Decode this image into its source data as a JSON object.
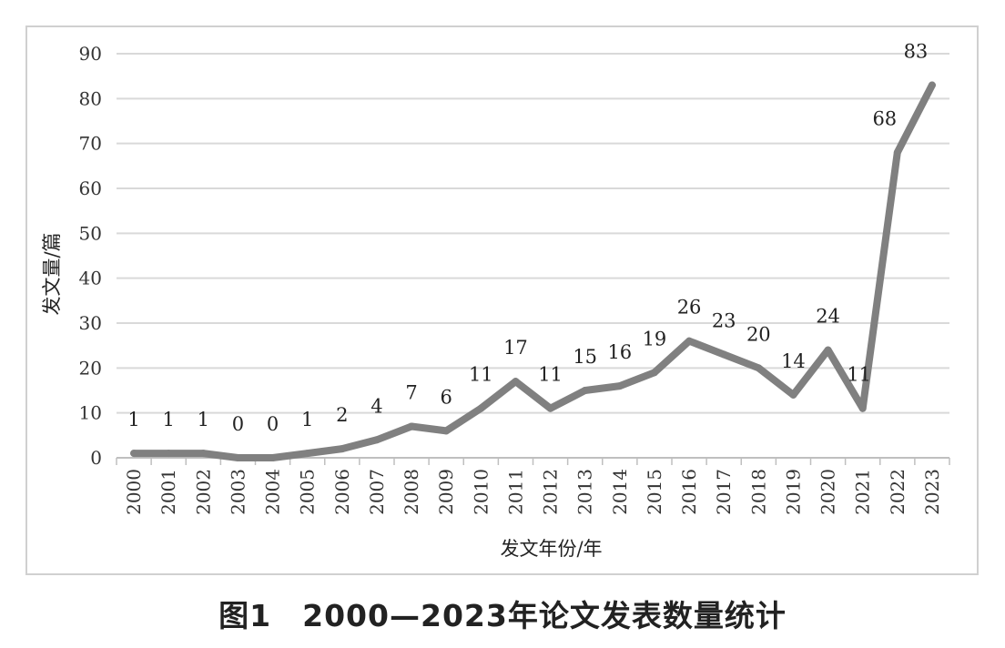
{
  "caption": "图1　2000—2023年论文发表数量统计",
  "chart_data": {
    "type": "line",
    "title": "",
    "xlabel": "发文年份/年",
    "ylabel": "发文量/篇",
    "categories": [
      "2000",
      "2001",
      "2002",
      "2003",
      "2004",
      "2005",
      "2006",
      "2007",
      "2008",
      "2009",
      "2010",
      "2011",
      "2012",
      "2013",
      "2014",
      "2015",
      "2016",
      "2017",
      "2018",
      "2019",
      "2020",
      "2021",
      "2022",
      "2023"
    ],
    "series": [
      {
        "values": [
          1,
          1,
          1,
          0,
          0,
          1,
          2,
          4,
          7,
          6,
          11,
          17,
          11,
          15,
          16,
          19,
          26,
          23,
          20,
          14,
          24,
          11,
          68,
          83
        ]
      }
    ],
    "ylim": [
      0,
      90
    ],
    "yticks": [
      0,
      10,
      20,
      30,
      40,
      50,
      60,
      70,
      80,
      90
    ],
    "grid": true,
    "line_color": "#808080",
    "grid_color": "#d9d9d9",
    "data_labels": true
  }
}
